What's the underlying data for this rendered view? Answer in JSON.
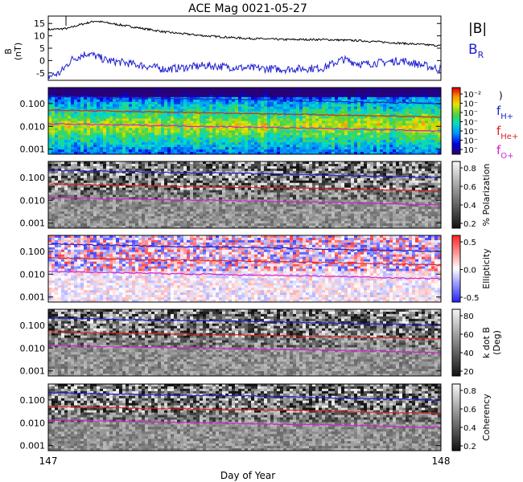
{
  "title": "ACE Mag 0021-05-27",
  "xlabel": "Day of Year",
  "x_ticks": [
    "147",
    "148"
  ],
  "line_panel": {
    "ylabel": "B",
    "yunit": "(nT)",
    "y_ticks": [
      "15",
      "10",
      "5",
      "0",
      "-5"
    ],
    "legend": [
      {
        "label": "|B|",
        "color": "#000000"
      },
      {
        "label": "B",
        "sub": "R",
        "color": "#1f1fd0"
      }
    ]
  },
  "freq_ticks": [
    "0.100",
    "0.010",
    "0.001"
  ],
  "freq_legend": [
    {
      "label": "f",
      "sub": "H+",
      "color": "#1f1fd0"
    },
    {
      "label": "f",
      "sub": "He+",
      "color": "#e02020"
    },
    {
      "label": "f",
      "sub": "O+",
      "color": "#d020d0"
    }
  ],
  "panels": [
    {
      "id": "power",
      "bar_label": "",
      "bar_ticks": [
        "10⁻²",
        "10⁻",
        "10⁻",
        "10⁻",
        "10⁻",
        "10⁻",
        "10⁻"
      ],
      "colormap": "rainbow",
      "paren": ")"
    },
    {
      "id": "polarization",
      "bar_label": "% Polarization",
      "bar_ticks": [
        "0.8",
        "0.6",
        "0.4",
        "0.2"
      ],
      "colormap": "gray"
    },
    {
      "id": "ellipticity",
      "bar_label": "Ellipticity",
      "bar_ticks": [
        "0.5",
        "0.0",
        "-0.5"
      ],
      "colormap": "bwr"
    },
    {
      "id": "kdotb",
      "bar_label": "k dot B",
      "bar_label2": "(Deg)",
      "bar_ticks": [
        "80",
        "60",
        "40",
        "20"
      ],
      "colormap": "gray"
    },
    {
      "id": "coherency",
      "bar_label": "Coherency",
      "bar_ticks": [
        "0.8",
        "0.6",
        "0.4",
        "0.2"
      ],
      "colormap": "gray"
    }
  ],
  "chart_data": {
    "type": "line",
    "x_unit": "Day of Year",
    "xlim": [
      147,
      148
    ],
    "series": [
      {
        "name": "|B|",
        "color": "#000000",
        "x": [
          147.0,
          147.05,
          147.08,
          147.12,
          147.2,
          147.3,
          147.4,
          147.5,
          147.6,
          147.7,
          147.8,
          147.9,
          148.0
        ],
        "y": [
          12.5,
          13.0,
          14.5,
          16.0,
          14.0,
          11.5,
          10.0,
          9.0,
          8.5,
          8.5,
          8.0,
          7.0,
          6.0
        ]
      },
      {
        "name": "B_R",
        "color": "#1f1fd0",
        "x": [
          147.0,
          147.03,
          147.06,
          147.1,
          147.15,
          147.2,
          147.3,
          147.4,
          147.5,
          147.6,
          147.7,
          147.75,
          147.8,
          147.9,
          148.0
        ],
        "y": [
          -6.5,
          -5.0,
          0.5,
          3.0,
          0.0,
          -1.0,
          -3.5,
          -2.0,
          -3.0,
          -3.5,
          -3.0,
          0.5,
          -1.5,
          0.0,
          -3.5
        ]
      },
      {
        "name": "f_H+",
        "color": "#1f1fd0",
        "x": [
          147.0,
          147.25,
          147.5,
          147.75,
          148.0
        ],
        "y": [
          0.21,
          0.17,
          0.15,
          0.12,
          0.1
        ]
      },
      {
        "name": "f_He+",
        "color": "#e02020",
        "x": [
          147.0,
          147.25,
          147.5,
          147.75,
          148.0
        ],
        "y": [
          0.052,
          0.043,
          0.037,
          0.031,
          0.025
        ]
      },
      {
        "name": "f_O+",
        "color": "#d020d0",
        "x": [
          147.0,
          147.25,
          147.5,
          147.75,
          148.0
        ],
        "y": [
          0.013,
          0.011,
          0.0093,
          0.0078,
          0.0062
        ]
      }
    ],
    "ylim_field": [
      -8,
      18
    ],
    "ylim_freq": [
      0.0006,
      0.5
    ],
    "freq_scale": "log"
  }
}
